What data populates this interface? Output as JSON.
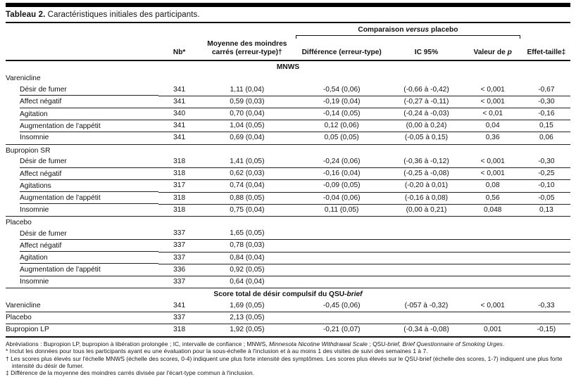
{
  "title": {
    "label": "Tableau 2.",
    "text": " Caractéristiques initiales des participants."
  },
  "header": {
    "spanner": {
      "pre": "Comparaison ",
      "italic": "versus",
      "post": " placebo"
    },
    "columns": {
      "nb": "Nb*",
      "mean": "Moyenne des moindres carrés (erreur-type)†",
      "diff": "Différence (erreur-type)",
      "ic": "IC 95%",
      "p_pre": "Valeur de ",
      "p_italic": "p",
      "effect": "Effet-taille‡"
    }
  },
  "table": {
    "sections": [
      {
        "type": "scale",
        "text_bold": "MNWS",
        "text_italic": ""
      },
      {
        "type": "group",
        "label": "Varenicline",
        "rows": [
          {
            "label": "Désir de fumer",
            "nb": "341",
            "mean": "1,11 (0,04)",
            "diff": "-0,54 (0,06)",
            "ic": "(-0,66 à -0,42)",
            "p": "< 0,001",
            "effect": "-0,67"
          },
          {
            "label": "Affect négatif",
            "nb": "341",
            "mean": "0,59 (0,03)",
            "diff": "-0,19 (0,04)",
            "ic": "(-0,27 à -0,11)",
            "p": "< 0,001",
            "effect": "-0,30"
          },
          {
            "label": "Agitation",
            "nb": "340",
            "mean": "0,70 (0,04)",
            "diff": "-0,14 (0,05)",
            "ic": "(-0,24 à -0,03)",
            "p": "< 0,01",
            "effect": "-0,16"
          },
          {
            "label": "Augmentation de l'appétit",
            "nb": "341",
            "mean": "1,04 (0,05)",
            "diff": "0,12 (0,06)",
            "ic": "(0,00 à 0,24)",
            "p": "0,04",
            "effect": "0,15"
          },
          {
            "label": "Insomnie",
            "nb": "341",
            "mean": "0,69 (0,04)",
            "diff": "0,05 (0,05)",
            "ic": "(-0,05 à 0,15)",
            "p": "0,36",
            "effect": "0,06"
          }
        ]
      },
      {
        "type": "group",
        "label": "Bupropion SR",
        "rows": [
          {
            "label": "Désir de fumer",
            "nb": "318",
            "mean": "1,41 (0,05)",
            "diff": "-0,24 (0,06)",
            "ic": "(-0,36 à -0,12)",
            "p": "< 0,001",
            "effect": "-0,30"
          },
          {
            "label": "Affect négatif",
            "nb": "318",
            "mean": "0,62 (0,03)",
            "diff": "-0,16 (0,04)",
            "ic": "(-0,25 à -0,08)",
            "p": "< 0,001",
            "effect": "-0,25"
          },
          {
            "label": "Agitations",
            "nb": "317",
            "mean": "0,74 (0,04)",
            "diff": "-0,09 (0,05)",
            "ic": "(-0,20 à 0,01)",
            "p": "0,08",
            "effect": "-0,10"
          },
          {
            "label": "Augmentation de l'appétit",
            "nb": "318",
            "mean": "0,88 (0,05)",
            "diff": "-0,04 (0,06)",
            "ic": "(-0,16 à 0,08)",
            "p": "0,56",
            "effect": "-0,05"
          },
          {
            "label": "Insomnie",
            "nb": "318",
            "mean": "0,75 (0,04)",
            "diff": "0,11 (0,05)",
            "ic": "(0,00 à 0,21)",
            "p": "0,048",
            "effect": "0,13"
          }
        ]
      },
      {
        "type": "group",
        "label": "Placebo",
        "rows": [
          {
            "label": "Désir de fumer",
            "nb": "337",
            "mean": "1,65 (0,05)",
            "diff": "",
            "ic": "",
            "p": "",
            "effect": ""
          },
          {
            "label": "Affect négatif",
            "nb": "337",
            "mean": "0,78 (0,03)",
            "diff": "",
            "ic": "",
            "p": "",
            "effect": ""
          },
          {
            "label": "Agitation",
            "nb": "337",
            "mean": "0,84 (0,04)",
            "diff": "",
            "ic": "",
            "p": "",
            "effect": ""
          },
          {
            "label": "Augmentation de l'appétit",
            "nb": "336",
            "mean": "0,92 (0,05)",
            "diff": "",
            "ic": "",
            "p": "",
            "effect": ""
          },
          {
            "label": "Insomnie",
            "nb": "337",
            "mean": "0,64 (0,04)",
            "diff": "",
            "ic": "",
            "p": "",
            "effect": ""
          }
        ]
      },
      {
        "type": "scale",
        "text_bold": "Score total de désir compulsif du QSU-",
        "text_italic": "brief"
      },
      {
        "type": "flat",
        "rows": [
          {
            "label": "Varenicline",
            "nb": "341",
            "mean": "1,69 (0,05)",
            "diff": "-0,45 (0,06)",
            "ic": "(-057 à -0,32)",
            "p": "< 0,001",
            "effect": "-0,33"
          },
          {
            "label": "Placebo",
            "nb": "337",
            "mean": "2,13 (0,05)",
            "diff": "",
            "ic": "",
            "p": "",
            "effect": ""
          },
          {
            "label": "Bupropion LP",
            "nb": "318",
            "mean": "1,92 (0,05)",
            "diff": "-0,21 (0,07)",
            "ic": "(-0,34 à -0,08)",
            "p": "0,001",
            "effect": "-0,15)"
          }
        ]
      }
    ]
  },
  "footnotes": {
    "abbrev": {
      "p1": "Abréviations : Bupropion LP, bupropion à libération prolongée ; IC, intervalle de confiance ; MNWS, ",
      "p2": "Minnesota Nicotine Withdrawal Scale",
      "p3": " ; QSU-",
      "p4": "brief, Brief Questionnaire of Smoking Urges",
      "p5": "."
    },
    "star": "* Inclut les données pour tous les participants ayant eu une évaluation pour la sous-échelle à l'inclusion et à au moins 1 des visites de suivi des semaines 1 à 7.",
    "dagger": "† Les scores plus élevés sur l'échelle MNWS (échelle des scores, 0-4) indiquent une plus forte intensité des symptômes. Les scores plus élevés sur le QSU-brief (échelle des scores, 1-7) indiquent une plus forte intensité du désir de fumer.",
    "ddagger": "‡ Différence de la moyenne des moindres carrés divisée par l'écart-type commun à l'inclusion."
  }
}
